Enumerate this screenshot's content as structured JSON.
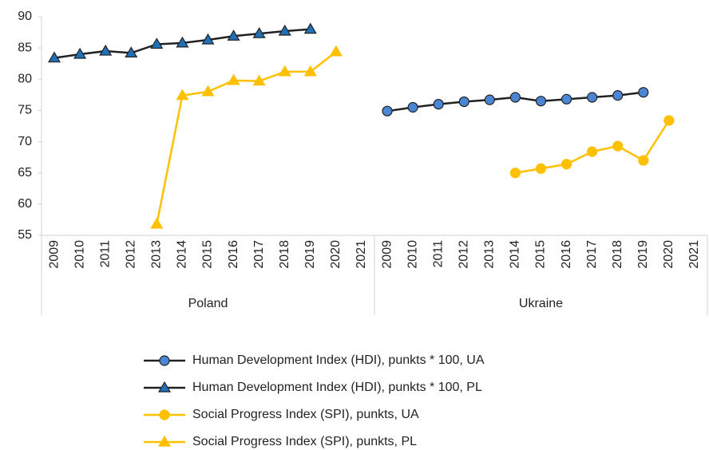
{
  "chart_data": {
    "type": "line",
    "groups": [
      {
        "name": "Poland",
        "categories": [
          "2009",
          "2010",
          "2011",
          "2012",
          "2013",
          "2014",
          "2015",
          "2016",
          "2017",
          "2018",
          "2019",
          "2020",
          "2021"
        ]
      },
      {
        "name": "Ukraine",
        "categories": [
          "2009",
          "2010",
          "2011",
          "2012",
          "2013",
          "2014",
          "2015",
          "2016",
          "2017",
          "2018",
          "2019",
          "2020",
          "2021"
        ]
      }
    ],
    "ylim": [
      55,
      90
    ],
    "yticks": [
      55,
      60,
      65,
      70,
      75,
      80,
      85,
      90
    ],
    "grid": false,
    "legend": "bottom",
    "series": [
      {
        "name": "Human Development Index (HDI), punkts * 100, UA",
        "color": "#222222",
        "marker": "circle",
        "marker_color": "#4a86d4",
        "values": [
          null,
          null,
          null,
          null,
          null,
          null,
          null,
          null,
          null,
          null,
          null,
          null,
          null,
          74.9,
          75.5,
          76.0,
          76.4,
          76.7,
          77.1,
          76.5,
          76.8,
          77.1,
          77.4,
          77.9,
          null,
          null
        ]
      },
      {
        "name": "Human Development Index (HDI), punkts * 100, PL",
        "color": "#222222",
        "marker": "triangle",
        "marker_color": "#1f70b8",
        "values": [
          83.4,
          84.0,
          84.5,
          84.2,
          85.6,
          85.8,
          86.3,
          86.9,
          87.3,
          87.7,
          88.0,
          null,
          null,
          null,
          null,
          null,
          null,
          null,
          null,
          null,
          null,
          null,
          null,
          null,
          null,
          null
        ]
      },
      {
        "name": "Social Progress Index (SPI), punkts, UA",
        "color": "#ffc000",
        "marker": "circle",
        "marker_color": "#ffc000",
        "values": [
          null,
          null,
          null,
          null,
          null,
          null,
          null,
          null,
          null,
          null,
          null,
          null,
          null,
          null,
          null,
          null,
          null,
          null,
          65.0,
          65.7,
          66.4,
          68.4,
          69.3,
          67.0,
          73.4,
          null
        ]
      },
      {
        "name": "Social Progress Index (SPI), punkts, PL",
        "color": "#ffc000",
        "marker": "triangle",
        "marker_color": "#ffc000",
        "values": [
          null,
          null,
          null,
          null,
          56.8,
          77.4,
          78.0,
          79.8,
          79.7,
          81.2,
          81.2,
          84.4,
          null,
          null,
          null,
          null,
          null,
          null,
          null,
          null,
          null,
          null,
          null,
          null,
          null,
          null
        ]
      }
    ]
  }
}
